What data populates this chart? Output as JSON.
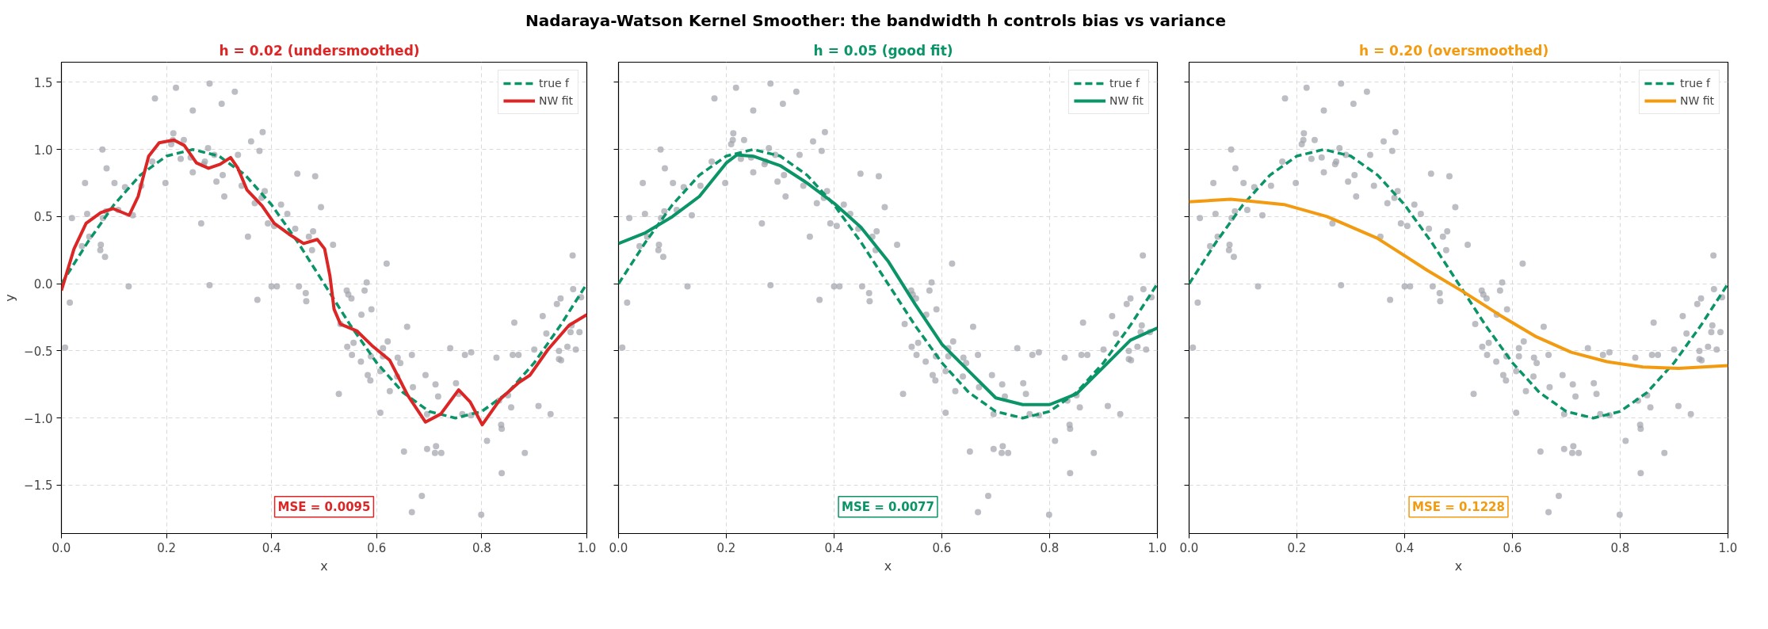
{
  "chart_data": [
    {
      "type": "other",
      "title": "Nadaraya-Watson Kernel Smoother: the bandwidth h controls bias vs variance"
    },
    {
      "type": "line",
      "subtitle": "h = 0.02   (undersmoothed)",
      "xlabel": "x",
      "ylabel": "y",
      "xlim": [
        0,
        1
      ],
      "ylim": [
        -1.86,
        1.65
      ],
      "xticks": [
        {
          "value": 0,
          "label": "0.0"
        },
        {
          "value": 0.2,
          "label": "0.2"
        },
        {
          "value": 0.4,
          "label": "0.4"
        },
        {
          "value": 0.6,
          "label": "0.6"
        },
        {
          "value": 0.8,
          "label": "0.8"
        },
        {
          "value": 1,
          "label": "1.0"
        }
      ],
      "yticks": [
        {
          "value": -1.5,
          "label": "−1.5"
        },
        {
          "value": -1,
          "label": "−1.0"
        },
        {
          "value": -0.5,
          "label": "−0.5"
        },
        {
          "value": 0,
          "label": "0.0"
        },
        {
          "value": 0.5,
          "label": "0.5"
        },
        {
          "value": 1,
          "label": "1.0"
        },
        {
          "value": 1.5,
          "label": "1.5"
        }
      ],
      "grid": true,
      "legend": "top right",
      "annotations": [
        "MSE = 0.0095"
      ],
      "series": [
        {
          "type": "scatter",
          "color": "#a0a3ab",
          "x": [
            0.007,
            0.016,
            0.02,
            0.039,
            0.045,
            0.049,
            0.053,
            0.075,
            0.074,
            0.083,
            0.078,
            0.086,
            0.079,
            0.085,
            0.101,
            0.108,
            0.121,
            0.128,
            0.136,
            0.152,
            0.173,
            0.178,
            0.198,
            0.209,
            0.213,
            0.212,
            0.218,
            0.227,
            0.233,
            0.246,
            0.25,
            0.25,
            0.266,
            0.271,
            0.273,
            0.279,
            0.282,
            0.282,
            0.291,
            0.295,
            0.305,
            0.307,
            0.31,
            0.33,
            0.336,
            0.343,
            0.355,
            0.361,
            0.368,
            0.377,
            0.381,
            0.383,
            0.387,
            0.373,
            0.393,
            0.4,
            0.405,
            0.41,
            0.418,
            0.43,
            0.445,
            0.449,
            0.452,
            0.465,
            0.466,
            0.471,
            0.479,
            0.477,
            0.483,
            0.494,
            0.517,
            0.528,
            0.531,
            0.543,
            0.546,
            0.552,
            0.544,
            0.556,
            0.553,
            0.57,
            0.571,
            0.577,
            0.581,
            0.583,
            0.588,
            0.59,
            0.589,
            0.607,
            0.607,
            0.612,
            0.612,
            0.619,
            0.621,
            0.625,
            0.64,
            0.645,
            0.639,
            0.652,
            0.658,
            0.667,
            0.669,
            0.667,
            0.686,
            0.693,
            0.696,
            0.696,
            0.712,
            0.713,
            0.711,
            0.717,
            0.723,
            0.74,
            0.751,
            0.756,
            0.763,
            0.768,
            0.78,
            0.78,
            0.799,
            0.81,
            0.828,
            0.833,
            0.837,
            0.838,
            0.838,
            0.85,
            0.856,
            0.859,
            0.862,
            0.87,
            0.882,
            0.9,
            0.908,
            0.916,
            0.923,
            0.931,
            0.943,
            0.95,
            0.947,
            0.947,
            0.951,
            0.963,
            0.969,
            0.971,
            0.973,
            0.974,
            0.979,
            0.986,
            0.989
          ],
          "values": [
            -0.475,
            -0.14,
            0.49,
            0.28,
            0.75,
            0.52,
            0.35,
            0.29,
            0.25,
            0.2,
            1.0,
            0.86,
            0.49,
            0.54,
            0.75,
            0.55,
            0.72,
            -0.02,
            0.51,
            0.73,
            0.91,
            1.38,
            0.75,
            1.04,
            1.12,
            1.07,
            1.46,
            0.93,
            1.07,
            0.94,
            1.29,
            0.83,
            0.45,
            0.89,
            0.91,
            1.01,
            1.49,
            -0.01,
            0.96,
            0.76,
            1.34,
            0.81,
            0.65,
            1.43,
            0.96,
            0.73,
            0.35,
            1.06,
            0.6,
            0.99,
            0.64,
            1.13,
            0.69,
            -0.12,
            0.45,
            -0.02,
            0.43,
            -0.02,
            0.59,
            0.52,
            0.41,
            0.82,
            -0.02,
            -0.07,
            -0.13,
            0.35,
            0.39,
            0.25,
            0.8,
            0.57,
            0.29,
            -0.82,
            -0.3,
            -0.05,
            -0.08,
            -0.11,
            -0.47,
            -0.44,
            -0.53,
            -0.58,
            -0.23,
            -0.05,
            0.01,
            -0.68,
            -0.72,
            -0.19,
            -0.54,
            -0.65,
            -0.96,
            -0.48,
            -0.54,
            0.15,
            -0.43,
            -0.8,
            -0.55,
            -0.59,
            -0.69,
            -1.25,
            -0.32,
            -0.53,
            -0.77,
            -1.7,
            -1.58,
            -0.68,
            -0.97,
            -1.23,
            -0.75,
            -1.21,
            -1.26,
            -0.84,
            -1.26,
            -0.48,
            -0.74,
            -0.82,
            -0.97,
            -0.53,
            -0.51,
            -0.98,
            -1.72,
            -1.17,
            -0.55,
            -0.87,
            -1.05,
            -1.08,
            -1.41,
            -0.83,
            -0.92,
            -0.53,
            -0.29,
            -0.53,
            -1.26,
            -0.49,
            -0.91,
            -0.24,
            -0.37,
            -0.97,
            -0.15,
            -0.11,
            -0.5,
            -0.56,
            -0.57,
            -0.47,
            -0.36,
            -0.31,
            0.21,
            -0.04,
            -0.49,
            -0.36,
            -0.1
          ]
        },
        {
          "type": "line",
          "name": "true f",
          "color": "#0a9468",
          "line_style": "dashed",
          "x": [
            0,
            0.05,
            0.1,
            0.15,
            0.2,
            0.25,
            0.3,
            0.35,
            0.4,
            0.45,
            0.5,
            0.55,
            0.6,
            0.65,
            0.7,
            0.75,
            0.8,
            0.85,
            0.9,
            0.95,
            1
          ],
          "values": [
            0,
            0.309,
            0.588,
            0.809,
            0.951,
            1,
            0.951,
            0.809,
            0.588,
            0.309,
            0,
            -0.309,
            -0.588,
            -0.809,
            -0.951,
            -1,
            -0.951,
            -0.809,
            -0.588,
            -0.309,
            0
          ]
        },
        {
          "type": "line",
          "name": "NW fit",
          "color": "#dc2626",
          "line_style": "solid",
          "x": [
            0,
            0.024,
            0.047,
            0.075,
            0.098,
            0.129,
            0.146,
            0.166,
            0.186,
            0.214,
            0.234,
            0.257,
            0.28,
            0.302,
            0.322,
            0.336,
            0.353,
            0.382,
            0.405,
            0.433,
            0.461,
            0.487,
            0.501,
            0.511,
            0.519,
            0.531,
            0.562,
            0.591,
            0.625,
            0.659,
            0.693,
            0.722,
            0.756,
            0.778,
            0.801,
            0.835,
            0.869,
            0.892,
            0.926,
            0.966,
            1.0
          ],
          "values": [
            -0.05,
            0.26,
            0.45,
            0.53,
            0.56,
            0.51,
            0.65,
            0.95,
            1.05,
            1.07,
            1.03,
            0.9,
            0.86,
            0.89,
            0.94,
            0.86,
            0.7,
            0.58,
            0.45,
            0.37,
            0.3,
            0.33,
            0.26,
            0.06,
            -0.19,
            -0.3,
            -0.35,
            -0.46,
            -0.57,
            -0.83,
            -1.03,
            -0.97,
            -0.79,
            -0.88,
            -1.05,
            -0.86,
            -0.74,
            -0.68,
            -0.49,
            -0.31,
            -0.23
          ]
        }
      ]
    },
    {
      "type": "line",
      "subtitle": "h = 0.05   (good fit)",
      "xlabel": "x",
      "xlim": [
        0,
        1
      ],
      "ylim": [
        -1.86,
        1.65
      ],
      "tick_labels": "x",
      "xticks": [
        {
          "value": 0,
          "label": "0.0"
        },
        {
          "value": 0.2,
          "label": "0.2"
        },
        {
          "value": 0.4,
          "label": "0.4"
        },
        {
          "value": 0.6,
          "label": "0.6"
        },
        {
          "value": 0.8,
          "label": "0.8"
        },
        {
          "value": 1,
          "label": "1.0"
        }
      ],
      "yticks": [
        -1.5,
        -1,
        -0.5,
        0,
        0.5,
        1,
        1.5
      ],
      "grid": true,
      "legend": "top right",
      "annotations": [
        "MSE = 0.0077"
      ],
      "series": [
        {
          "type": "scatter",
          "color": "#a0a3ab",
          "x": [
            0.007,
            0.016,
            0.02,
            0.039,
            0.045,
            0.049,
            0.053,
            0.075,
            0.074,
            0.083,
            0.078,
            0.086,
            0.079,
            0.085,
            0.101,
            0.108,
            0.121,
            0.128,
            0.136,
            0.152,
            0.173,
            0.178,
            0.198,
            0.209,
            0.213,
            0.212,
            0.218,
            0.227,
            0.233,
            0.246,
            0.25,
            0.25,
            0.266,
            0.271,
            0.273,
            0.279,
            0.282,
            0.282,
            0.291,
            0.295,
            0.305,
            0.307,
            0.31,
            0.33,
            0.336,
            0.343,
            0.355,
            0.361,
            0.368,
            0.377,
            0.381,
            0.383,
            0.387,
            0.373,
            0.393,
            0.4,
            0.405,
            0.41,
            0.418,
            0.43,
            0.445,
            0.449,
            0.452,
            0.465,
            0.466,
            0.471,
            0.479,
            0.477,
            0.483,
            0.494,
            0.517,
            0.528,
            0.531,
            0.543,
            0.546,
            0.552,
            0.544,
            0.556,
            0.553,
            0.57,
            0.571,
            0.577,
            0.581,
            0.583,
            0.588,
            0.59,
            0.589,
            0.607,
            0.607,
            0.612,
            0.612,
            0.619,
            0.621,
            0.625,
            0.64,
            0.645,
            0.639,
            0.652,
            0.658,
            0.667,
            0.669,
            0.667,
            0.686,
            0.693,
            0.696,
            0.696,
            0.712,
            0.713,
            0.711,
            0.717,
            0.723,
            0.74,
            0.751,
            0.756,
            0.763,
            0.768,
            0.78,
            0.78,
            0.799,
            0.81,
            0.828,
            0.833,
            0.837,
            0.838,
            0.838,
            0.85,
            0.856,
            0.859,
            0.862,
            0.87,
            0.882,
            0.9,
            0.908,
            0.916,
            0.923,
            0.931,
            0.943,
            0.95,
            0.947,
            0.947,
            0.951,
            0.963,
            0.969,
            0.971,
            0.973,
            0.974,
            0.979,
            0.986,
            0.989
          ],
          "values": [
            -0.475,
            -0.14,
            0.49,
            0.28,
            0.75,
            0.52,
            0.35,
            0.29,
            0.25,
            0.2,
            1.0,
            0.86,
            0.49,
            0.54,
            0.75,
            0.55,
            0.72,
            -0.02,
            0.51,
            0.73,
            0.91,
            1.38,
            0.75,
            1.04,
            1.12,
            1.07,
            1.46,
            0.93,
            1.07,
            0.94,
            1.29,
            0.83,
            0.45,
            0.89,
            0.91,
            1.01,
            1.49,
            -0.01,
            0.96,
            0.76,
            1.34,
            0.81,
            0.65,
            1.43,
            0.96,
            0.73,
            0.35,
            1.06,
            0.6,
            0.99,
            0.64,
            1.13,
            0.69,
            -0.12,
            0.45,
            -0.02,
            0.43,
            -0.02,
            0.59,
            0.52,
            0.41,
            0.82,
            -0.02,
            -0.07,
            -0.13,
            0.35,
            0.39,
            0.25,
            0.8,
            0.57,
            0.29,
            -0.82,
            -0.3,
            -0.05,
            -0.08,
            -0.11,
            -0.47,
            -0.44,
            -0.53,
            -0.58,
            -0.23,
            -0.05,
            0.01,
            -0.68,
            -0.72,
            -0.19,
            -0.54,
            -0.65,
            -0.96,
            -0.48,
            -0.54,
            0.15,
            -0.43,
            -0.8,
            -0.55,
            -0.59,
            -0.69,
            -1.25,
            -0.32,
            -0.53,
            -0.77,
            -1.7,
            -1.58,
            -0.68,
            -0.97,
            -1.23,
            -0.75,
            -1.21,
            -1.26,
            -0.84,
            -1.26,
            -0.48,
            -0.74,
            -0.82,
            -0.97,
            -0.53,
            -0.51,
            -0.98,
            -1.72,
            -1.17,
            -0.55,
            -0.87,
            -1.05,
            -1.08,
            -1.41,
            -0.83,
            -0.92,
            -0.53,
            -0.29,
            -0.53,
            -1.26,
            -0.49,
            -0.91,
            -0.24,
            -0.37,
            -0.97,
            -0.15,
            -0.11,
            -0.5,
            -0.56,
            -0.57,
            -0.47,
            -0.36,
            -0.31,
            0.21,
            -0.04,
            -0.49,
            -0.36,
            -0.1
          ]
        },
        {
          "type": "line",
          "name": "true f",
          "color": "#0a9468",
          "line_style": "dashed",
          "x": [
            0,
            0.05,
            0.1,
            0.15,
            0.2,
            0.25,
            0.3,
            0.35,
            0.4,
            0.45,
            0.5,
            0.55,
            0.6,
            0.65,
            0.7,
            0.75,
            0.8,
            0.85,
            0.9,
            0.95,
            1
          ],
          "values": [
            0,
            0.309,
            0.588,
            0.809,
            0.951,
            1,
            0.951,
            0.809,
            0.588,
            0.309,
            0,
            -0.309,
            -0.588,
            -0.809,
            -0.951,
            -1,
            -0.951,
            -0.809,
            -0.588,
            -0.309,
            0
          ]
        },
        {
          "type": "line",
          "name": "NW fit",
          "color": "#0a9468",
          "line_style": "solid",
          "x": [
            0,
            0.05,
            0.1,
            0.15,
            0.2,
            0.22,
            0.25,
            0.3,
            0.35,
            0.4,
            0.45,
            0.5,
            0.55,
            0.6,
            0.65,
            0.7,
            0.75,
            0.8,
            0.85,
            0.9,
            0.95,
            1.0
          ],
          "values": [
            0.3,
            0.38,
            0.5,
            0.65,
            0.9,
            0.96,
            0.95,
            0.88,
            0.75,
            0.6,
            0.42,
            0.17,
            -0.15,
            -0.45,
            -0.65,
            -0.85,
            -0.9,
            -0.9,
            -0.82,
            -0.62,
            -0.42,
            -0.33
          ]
        }
      ]
    },
    {
      "type": "line",
      "subtitle": "h = 0.20   (oversmoothed)",
      "xlabel": "x",
      "xlim": [
        0,
        1
      ],
      "ylim": [
        -1.86,
        1.65
      ],
      "tick_labels": "x",
      "xticks": [
        {
          "value": 0,
          "label": "0.0"
        },
        {
          "value": 0.2,
          "label": "0.2"
        },
        {
          "value": 0.4,
          "label": "0.4"
        },
        {
          "value": 0.6,
          "label": "0.6"
        },
        {
          "value": 0.8,
          "label": "0.8"
        },
        {
          "value": 1,
          "label": "1.0"
        }
      ],
      "yticks": [
        -1.5,
        -1,
        -0.5,
        0,
        0.5,
        1,
        1.5
      ],
      "grid": true,
      "legend": "top right",
      "annotations": [
        "MSE = 0.1228"
      ],
      "series": [
        {
          "type": "scatter",
          "color": "#a0a3ab",
          "x": [
            0.007,
            0.016,
            0.02,
            0.039,
            0.045,
            0.049,
            0.053,
            0.075,
            0.074,
            0.083,
            0.078,
            0.086,
            0.079,
            0.085,
            0.101,
            0.108,
            0.121,
            0.128,
            0.136,
            0.152,
            0.173,
            0.178,
            0.198,
            0.209,
            0.213,
            0.212,
            0.218,
            0.227,
            0.233,
            0.246,
            0.25,
            0.25,
            0.266,
            0.271,
            0.273,
            0.279,
            0.282,
            0.282,
            0.291,
            0.295,
            0.305,
            0.307,
            0.31,
            0.33,
            0.336,
            0.343,
            0.355,
            0.361,
            0.368,
            0.377,
            0.381,
            0.383,
            0.387,
            0.373,
            0.393,
            0.4,
            0.405,
            0.41,
            0.418,
            0.43,
            0.445,
            0.449,
            0.452,
            0.465,
            0.466,
            0.471,
            0.479,
            0.477,
            0.483,
            0.494,
            0.517,
            0.528,
            0.531,
            0.543,
            0.546,
            0.552,
            0.544,
            0.556,
            0.553,
            0.57,
            0.571,
            0.577,
            0.581,
            0.583,
            0.588,
            0.59,
            0.589,
            0.607,
            0.607,
            0.612,
            0.612,
            0.619,
            0.621,
            0.625,
            0.64,
            0.645,
            0.639,
            0.652,
            0.658,
            0.667,
            0.669,
            0.667,
            0.686,
            0.693,
            0.696,
            0.696,
            0.712,
            0.713,
            0.711,
            0.717,
            0.723,
            0.74,
            0.751,
            0.756,
            0.763,
            0.768,
            0.78,
            0.78,
            0.799,
            0.81,
            0.828,
            0.833,
            0.837,
            0.838,
            0.838,
            0.85,
            0.856,
            0.859,
            0.862,
            0.87,
            0.882,
            0.9,
            0.908,
            0.916,
            0.923,
            0.931,
            0.943,
            0.95,
            0.947,
            0.947,
            0.951,
            0.963,
            0.969,
            0.971,
            0.973,
            0.974,
            0.979,
            0.986,
            0.989
          ],
          "values": [
            -0.475,
            -0.14,
            0.49,
            0.28,
            0.75,
            0.52,
            0.35,
            0.29,
            0.25,
            0.2,
            1.0,
            0.86,
            0.49,
            0.54,
            0.75,
            0.55,
            0.72,
            -0.02,
            0.51,
            0.73,
            0.91,
            1.38,
            0.75,
            1.04,
            1.12,
            1.07,
            1.46,
            0.93,
            1.07,
            0.94,
            1.29,
            0.83,
            0.45,
            0.89,
            0.91,
            1.01,
            1.49,
            -0.01,
            0.96,
            0.76,
            1.34,
            0.81,
            0.65,
            1.43,
            0.96,
            0.73,
            0.35,
            1.06,
            0.6,
            0.99,
            0.64,
            1.13,
            0.69,
            -0.12,
            0.45,
            -0.02,
            0.43,
            -0.02,
            0.59,
            0.52,
            0.41,
            0.82,
            -0.02,
            -0.07,
            -0.13,
            0.35,
            0.39,
            0.25,
            0.8,
            0.57,
            0.29,
            -0.82,
            -0.3,
            -0.05,
            -0.08,
            -0.11,
            -0.47,
            -0.44,
            -0.53,
            -0.58,
            -0.23,
            -0.05,
            0.01,
            -0.68,
            -0.72,
            -0.19,
            -0.54,
            -0.65,
            -0.96,
            -0.48,
            -0.54,
            0.15,
            -0.43,
            -0.8,
            -0.55,
            -0.59,
            -0.69,
            -1.25,
            -0.32,
            -0.53,
            -0.77,
            -1.7,
            -1.58,
            -0.68,
            -0.97,
            -1.23,
            -0.75,
            -1.21,
            -1.26,
            -0.84,
            -1.26,
            -0.48,
            -0.74,
            -0.82,
            -0.97,
            -0.53,
            -0.51,
            -0.98,
            -1.72,
            -1.17,
            -0.55,
            -0.87,
            -1.05,
            -1.08,
            -1.41,
            -0.83,
            -0.92,
            -0.53,
            -0.29,
            -0.53,
            -1.26,
            -0.49,
            -0.91,
            -0.24,
            -0.37,
            -0.97,
            -0.15,
            -0.11,
            -0.5,
            -0.56,
            -0.57,
            -0.47,
            -0.36,
            -0.31,
            0.21,
            -0.04,
            -0.49,
            -0.36,
            -0.1
          ]
        },
        {
          "type": "line",
          "name": "true f",
          "color": "#0a9468",
          "line_style": "dashed",
          "x": [
            0,
            0.05,
            0.1,
            0.15,
            0.2,
            0.25,
            0.3,
            0.35,
            0.4,
            0.45,
            0.5,
            0.55,
            0.6,
            0.65,
            0.7,
            0.75,
            0.8,
            0.85,
            0.9,
            0.95,
            1
          ],
          "values": [
            0,
            0.309,
            0.588,
            0.809,
            0.951,
            1,
            0.951,
            0.809,
            0.588,
            0.309,
            0,
            -0.309,
            -0.588,
            -0.809,
            -0.951,
            -1,
            -0.951,
            -0.809,
            -0.588,
            -0.309,
            0
          ]
        },
        {
          "type": "line",
          "name": "NW fit",
          "color": "#f29b11",
          "line_style": "solid",
          "x": [
            0,
            0.077,
            0.176,
            0.256,
            0.349,
            0.442,
            0.509,
            0.575,
            0.642,
            0.709,
            0.775,
            0.842,
            0.908,
            1.0
          ],
          "values": [
            0.61,
            0.63,
            0.59,
            0.5,
            0.34,
            0.1,
            -0.06,
            -0.23,
            -0.39,
            -0.51,
            -0.58,
            -0.62,
            -0.63,
            -0.61
          ]
        }
      ]
    }
  ]
}
